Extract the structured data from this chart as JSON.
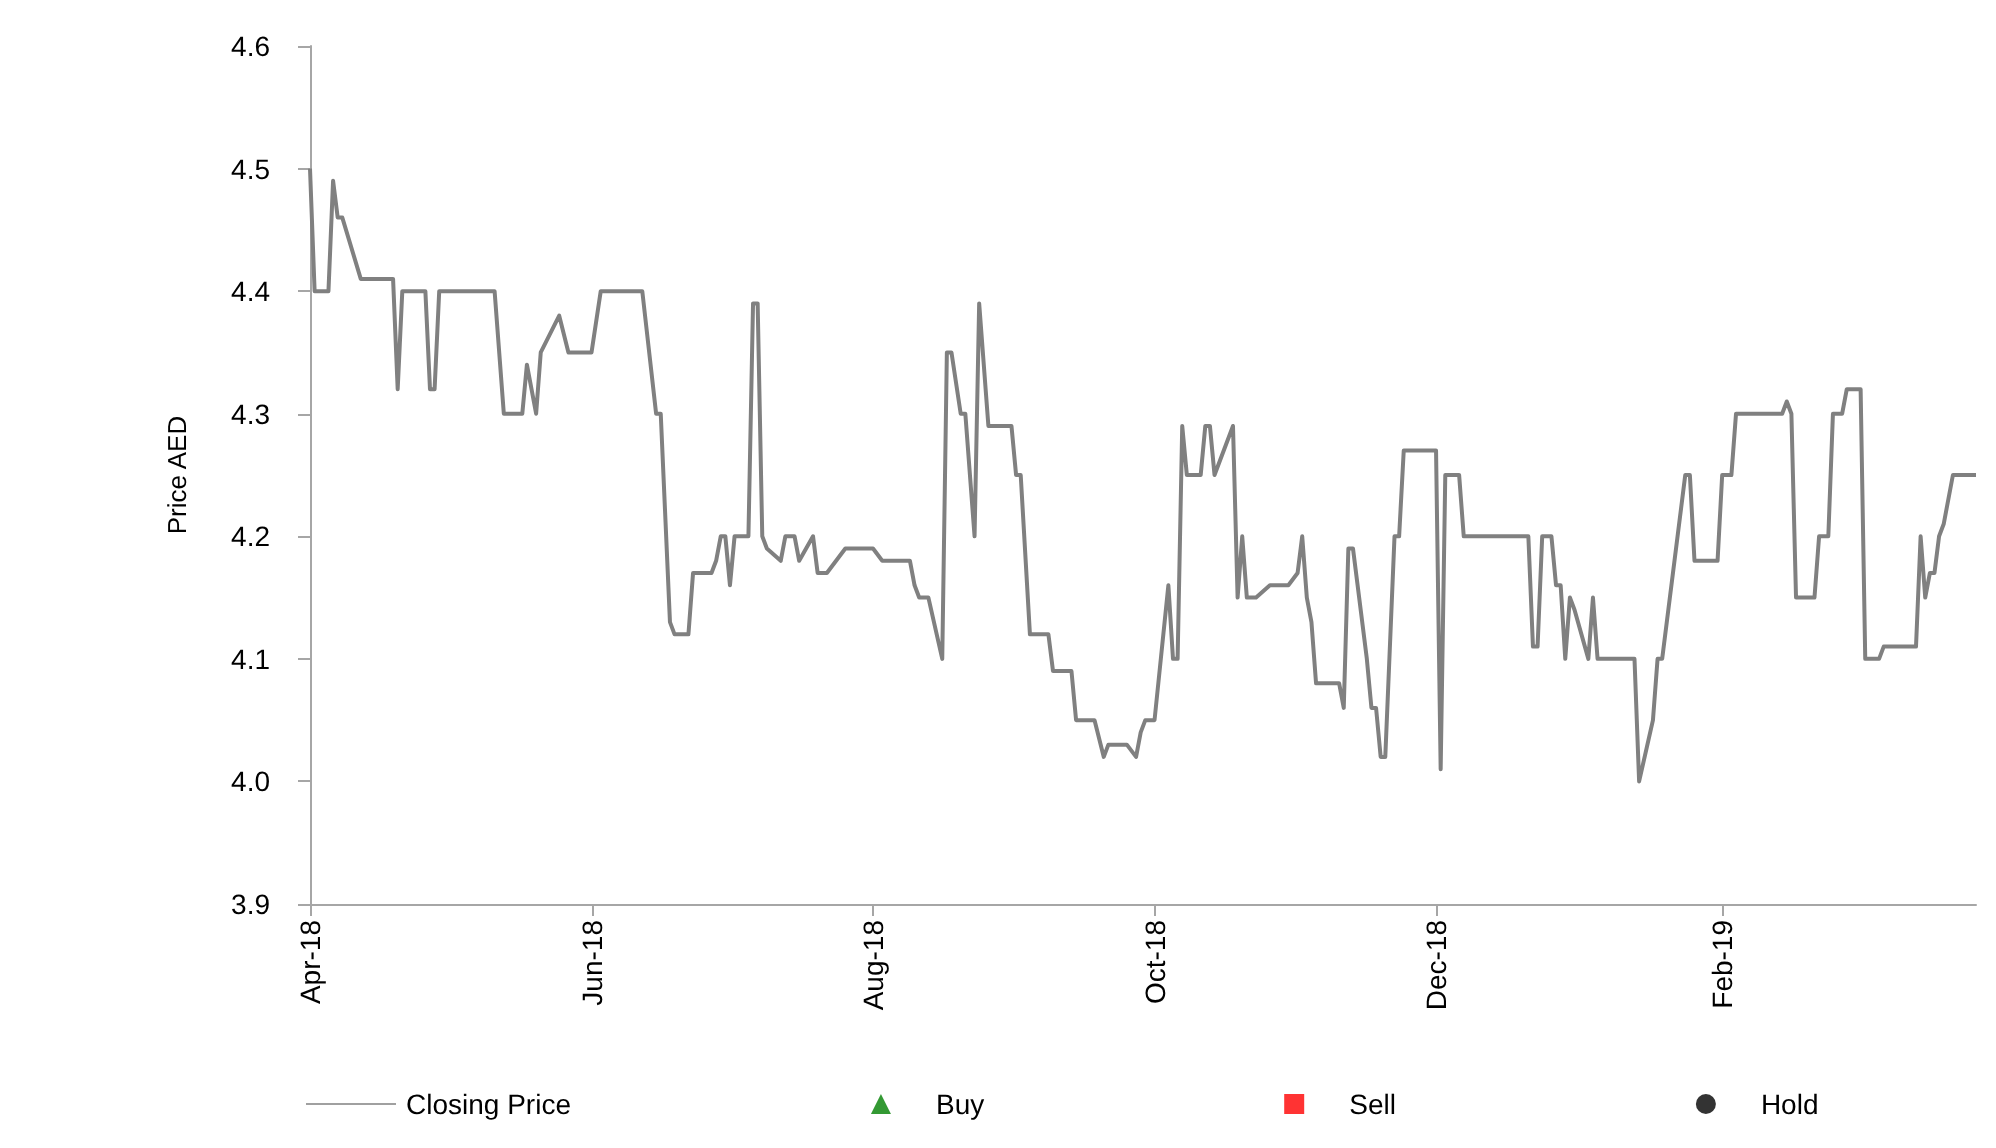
{
  "chart_data": {
    "type": "line",
    "ylabel": "Price AED",
    "x": [
      "2018-04-01",
      "2018-04-02",
      "2018-04-05",
      "2018-04-06",
      "2018-04-07",
      "2018-04-08",
      "2018-04-12",
      "2018-04-19",
      "2018-04-20",
      "2018-04-21",
      "2018-04-26",
      "2018-04-27",
      "2018-04-28",
      "2018-04-29",
      "2018-05-11",
      "2018-05-13",
      "2018-05-17",
      "2018-05-18",
      "2018-05-20",
      "2018-05-21",
      "2018-05-25",
      "2018-05-27",
      "2018-06-01",
      "2018-06-03",
      "2018-06-12",
      "2018-06-15",
      "2018-06-16",
      "2018-06-18",
      "2018-06-19",
      "2018-06-22",
      "2018-06-23",
      "2018-06-27",
      "2018-06-28",
      "2018-06-29",
      "2018-06-30",
      "2018-07-01",
      "2018-07-02",
      "2018-07-05",
      "2018-07-06",
      "2018-07-07",
      "2018-07-08",
      "2018-07-09",
      "2018-07-12",
      "2018-07-13",
      "2018-07-15",
      "2018-07-16",
      "2018-07-19",
      "2018-07-20",
      "2018-07-22",
      "2018-07-24",
      "2018-07-26",
      "2018-08-01",
      "2018-08-03",
      "2018-08-09",
      "2018-08-10",
      "2018-08-11",
      "2018-08-13",
      "2018-08-16",
      "2018-08-17",
      "2018-08-18",
      "2018-08-20",
      "2018-08-21",
      "2018-08-23",
      "2018-08-24",
      "2018-08-26",
      "2018-08-31",
      "2018-09-01",
      "2018-09-02",
      "2018-09-04",
      "2018-09-08",
      "2018-09-09",
      "2018-09-13",
      "2018-09-14",
      "2018-09-18",
      "2018-09-20",
      "2018-09-21",
      "2018-09-25",
      "2018-09-27",
      "2018-09-28",
      "2018-09-29",
      "2018-10-01",
      "2018-10-04",
      "2018-10-05",
      "2018-10-06",
      "2018-10-07",
      "2018-10-08",
      "2018-10-11",
      "2018-10-12",
      "2018-10-13",
      "2018-10-14",
      "2018-10-18",
      "2018-10-19",
      "2018-10-20",
      "2018-10-21",
      "2018-10-23",
      "2018-10-26",
      "2018-10-30",
      "2018-11-01",
      "2018-11-02",
      "2018-11-03",
      "2018-11-04",
      "2018-11-05",
      "2018-11-10",
      "2018-11-11",
      "2018-11-12",
      "2018-11-13",
      "2018-11-16",
      "2018-11-17",
      "2018-11-18",
      "2018-11-19",
      "2018-11-20",
      "2018-11-22",
      "2018-11-23",
      "2018-11-24",
      "2018-12-01",
      "2018-12-02",
      "2018-12-03",
      "2018-12-06",
      "2018-12-07",
      "2018-12-21",
      "2018-12-22",
      "2018-12-23",
      "2018-12-24",
      "2018-12-26",
      "2018-12-27",
      "2018-12-28",
      "2018-12-29",
      "2018-12-30",
      "2018-12-31",
      "2019-01-03",
      "2019-01-04",
      "2019-01-05",
      "2019-01-13",
      "2019-01-14",
      "2019-01-17",
      "2019-01-18",
      "2019-01-19",
      "2019-01-24",
      "2019-01-25",
      "2019-01-26",
      "2019-01-31",
      "2019-02-01",
      "2019-02-03",
      "2019-02-04",
      "2019-02-14",
      "2019-02-15",
      "2019-02-16",
      "2019-02-17",
      "2019-02-21",
      "2019-02-22",
      "2019-02-24",
      "2019-02-25",
      "2019-02-27",
      "2019-02-28",
      "2019-03-03",
      "2019-03-04",
      "2019-03-07",
      "2019-03-08",
      "2019-03-15",
      "2019-03-16",
      "2019-03-17",
      "2019-03-18",
      "2019-03-19",
      "2019-03-20",
      "2019-03-21",
      "2019-03-23",
      "2019-03-28"
    ],
    "series": [
      {
        "name": "Closing Price",
        "color": "#808080",
        "values": [
          4.5,
          4.4,
          4.4,
          4.49,
          4.46,
          4.46,
          4.41,
          4.41,
          4.32,
          4.4,
          4.4,
          4.32,
          4.32,
          4.4,
          4.4,
          4.3,
          4.3,
          4.34,
          4.3,
          4.35,
          4.38,
          4.35,
          4.35,
          4.4,
          4.4,
          4.3,
          4.3,
          4.13,
          4.12,
          4.12,
          4.17,
          4.17,
          4.18,
          4.2,
          4.2,
          4.16,
          4.2,
          4.2,
          4.39,
          4.39,
          4.2,
          4.19,
          4.18,
          4.2,
          4.2,
          4.18,
          4.2,
          4.17,
          4.17,
          4.18,
          4.19,
          4.19,
          4.18,
          4.18,
          4.16,
          4.15,
          4.15,
          4.1,
          4.35,
          4.35,
          4.3,
          4.3,
          4.2,
          4.39,
          4.29,
          4.29,
          4.25,
          4.25,
          4.12,
          4.12,
          4.09,
          4.09,
          4.05,
          4.05,
          4.02,
          4.03,
          4.03,
          4.02,
          4.04,
          4.05,
          4.05,
          4.16,
          4.1,
          4.1,
          4.29,
          4.25,
          4.25,
          4.29,
          4.29,
          4.25,
          4.29,
          4.15,
          4.2,
          4.15,
          4.15,
          4.16,
          4.16,
          4.17,
          4.2,
          4.15,
          4.13,
          4.08,
          4.08,
          4.06,
          4.19,
          4.19,
          4.1,
          4.06,
          4.06,
          4.02,
          4.02,
          4.2,
          4.2,
          4.27,
          4.27,
          4.01,
          4.25,
          4.25,
          4.2,
          4.2,
          4.11,
          4.11,
          4.2,
          4.2,
          4.16,
          4.16,
          4.1,
          4.15,
          4.14,
          4.1,
          4.15,
          4.1,
          4.1,
          4.0,
          4.05,
          4.1,
          4.1,
          4.25,
          4.25,
          4.18,
          4.18,
          4.25,
          4.25,
          4.3,
          4.3,
          4.31,
          4.3,
          4.15,
          4.15,
          4.2,
          4.2,
          4.3,
          4.3,
          4.32,
          4.32,
          4.1,
          4.1,
          4.11,
          4.11,
          4.2,
          4.15,
          4.17,
          4.17,
          4.2,
          4.21,
          4.25,
          4.25
        ]
      },
      {
        "name": "Buy",
        "type": "scatter",
        "marker": "triangle",
        "color": "#008000",
        "values": [
          null,
          null,
          null,
          null,
          null,
          null,
          null,
          null,
          null,
          null,
          null,
          null,
          null,
          null,
          null,
          null,
          null,
          null,
          null,
          null,
          null,
          null,
          null,
          null,
          null,
          null,
          null,
          null,
          null,
          null,
          null,
          null,
          null,
          null,
          null,
          null,
          null,
          null,
          null,
          null,
          null,
          null,
          null,
          null,
          null,
          null,
          null,
          null,
          null,
          null,
          null,
          null,
          null,
          null,
          null,
          null,
          null,
          null,
          null,
          null,
          null,
          null,
          null,
          null,
          null,
          null,
          null,
          null,
          null,
          null,
          null,
          null,
          null,
          null,
          null,
          null,
          null,
          null,
          null,
          null,
          null,
          null,
          null,
          null,
          null,
          null,
          null,
          null,
          null,
          null,
          null,
          null,
          null,
          null,
          null,
          null,
          null,
          null,
          null,
          null,
          null,
          null,
          null,
          null,
          null,
          null,
          null,
          null,
          null,
          null,
          null,
          null,
          null,
          null,
          null,
          null,
          null,
          null,
          null,
          null,
          null,
          null,
          null,
          null,
          null,
          null,
          null,
          null,
          null,
          null,
          null,
          null,
          null,
          null,
          null,
          null,
          null,
          null,
          null,
          null,
          null,
          null,
          null,
          null,
          null,
          null,
          null,
          null,
          null,
          null,
          null,
          null,
          null,
          null,
          null,
          null,
          null,
          null,
          null,
          null,
          null,
          null,
          null,
          null,
          null,
          null,
          null
        ]
      },
      {
        "name": "Sell",
        "type": "scatter",
        "marker": "square",
        "color": "#ff0000",
        "values": [
          null,
          null,
          null,
          null,
          null,
          null,
          null,
          null,
          null,
          null,
          null,
          null,
          null,
          null,
          null,
          null,
          null,
          null,
          null,
          null,
          null,
          null,
          null,
          null,
          null,
          null,
          null,
          null,
          null,
          null,
          null,
          null,
          null,
          null,
          null,
          null,
          null,
          null,
          null,
          null,
          null,
          null,
          null,
          null,
          null,
          null,
          null,
          null,
          null,
          null,
          null,
          null,
          null,
          null,
          null,
          null,
          null,
          null,
          null,
          null,
          null,
          null,
          null,
          null,
          null,
          null,
          null,
          null,
          null,
          null,
          null,
          null,
          null,
          null,
          null,
          null,
          null,
          null,
          null,
          null,
          null,
          null,
          null,
          null,
          null,
          null,
          null,
          null,
          null,
          null,
          null,
          null,
          null,
          null,
          null,
          null,
          null,
          null,
          null,
          null,
          null,
          null,
          null,
          null,
          null,
          null,
          null,
          null,
          null,
          null,
          null,
          null,
          null,
          null,
          null,
          null,
          null,
          null,
          null,
          null,
          null,
          null,
          null,
          null,
          null,
          null,
          null,
          null,
          null,
          null,
          null,
          null,
          null,
          null,
          null,
          null,
          null,
          null,
          null,
          null,
          null,
          null,
          null,
          null,
          null,
          null,
          null,
          null,
          null,
          null,
          null,
          null,
          null,
          null,
          null,
          null,
          null,
          null,
          null,
          null,
          null,
          null,
          null,
          null,
          null,
          null,
          null
        ]
      },
      {
        "name": "Hold",
        "type": "scatter",
        "marker": "circle",
        "color": "#000000",
        "values": [
          null,
          null,
          null,
          null,
          null,
          null,
          null,
          null,
          null,
          null,
          null,
          null,
          null,
          null,
          null,
          null,
          null,
          null,
          null,
          null,
          null,
          null,
          null,
          null,
          null,
          null,
          null,
          null,
          null,
          null,
          null,
          null,
          null,
          null,
          null,
          null,
          null,
          null,
          null,
          null,
          null,
          null,
          null,
          null,
          null,
          null,
          null,
          null,
          null,
          null,
          null,
          null,
          null,
          null,
          null,
          null,
          null,
          null,
          null,
          null,
          null,
          null,
          null,
          null,
          null,
          null,
          null,
          null,
          null,
          null,
          null,
          null,
          null,
          null,
          null,
          null,
          null,
          null,
          null,
          null,
          null,
          null,
          null,
          null,
          null,
          null,
          null,
          null,
          null,
          null,
          null,
          null,
          null,
          null,
          null,
          null,
          null,
          null,
          null,
          null,
          null,
          null,
          null,
          null,
          null,
          null,
          null,
          null,
          null,
          null,
          null,
          null,
          null,
          null,
          null,
          null,
          null,
          null,
          null,
          null,
          null,
          null,
          null,
          null,
          null,
          null,
          null,
          null,
          null,
          null,
          null,
          null,
          null,
          null,
          null,
          null,
          null,
          null,
          null,
          null,
          null,
          null,
          null,
          null,
          null,
          null,
          null,
          null,
          null,
          null,
          null,
          null,
          null,
          null,
          null,
          null,
          null,
          null,
          null,
          null,
          null,
          null,
          null,
          null,
          null,
          null,
          null
        ]
      }
    ],
    "xlim": [
      "2018-04-01",
      "2019-03-28"
    ],
    "xticks": [
      {
        "value": "2018-04-01",
        "label": "Apr-18"
      },
      {
        "value": "2018-06-01",
        "label": "Jun-18"
      },
      {
        "value": "2018-08-01",
        "label": "Aug-18"
      },
      {
        "value": "2018-10-01",
        "label": "Oct-18"
      },
      {
        "value": "2018-12-01",
        "label": "Dec-18"
      },
      {
        "value": "2019-02-01",
        "label": "Feb-19"
      }
    ],
    "ylim": [
      3.9,
      4.6
    ],
    "yticks": [
      3.9,
      {
        "value": 4,
        "label": "4.0"
      },
      4.1,
      4.2,
      4.3,
      4.4,
      4.5,
      4.6
    ],
    "grid": false,
    "legend": "bottom",
    "line_style": "solid"
  }
}
